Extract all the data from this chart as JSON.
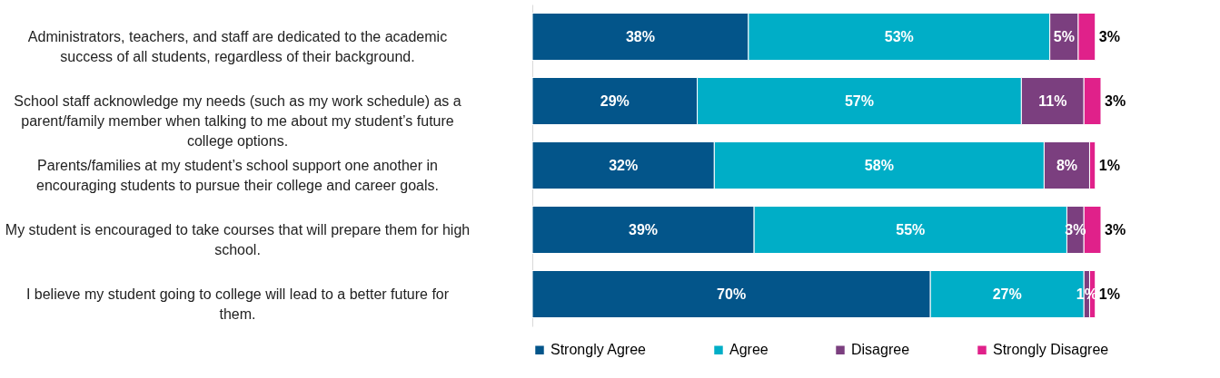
{
  "chart_data": {
    "type": "bar",
    "orientation": "horizontal",
    "stacked": true,
    "legend": "bottom",
    "grid": false,
    "categories": [
      "Administrators, teachers, and staff are dedicated to the academic success of all students, regardless of their background.",
      "School staff acknowledge my needs (such as my work schedule) as a parent/family member when talking to me about my student’s future college options.",
      "Parents/families at my student’s school support one another in encouraging students to pursue their college and career goals.",
      "My student is encouraged to take courses that will prepare them for high school.",
      "I believe my student going to college will lead to a better future for them."
    ],
    "series": [
      {
        "name": "Strongly Agree",
        "color": "#03558a",
        "values": [
          38,
          29,
          32,
          39,
          70
        ],
        "value_labels": [
          "38%",
          "29%",
          "32%",
          "39%",
          "70%"
        ]
      },
      {
        "name": "Agree",
        "color": "#00aec7",
        "values": [
          53,
          57,
          58,
          55,
          27
        ],
        "value_labels": [
          "53%",
          "57%",
          "58%",
          "55%",
          "27%"
        ]
      },
      {
        "name": "Disagree",
        "color": "#7b3f7f",
        "values": [
          5,
          11,
          8,
          3,
          1
        ],
        "value_labels": [
          "5%",
          "11%",
          "8%",
          "3%",
          "1%"
        ]
      },
      {
        "name": "Strongly Disagree",
        "color": "#e0218a",
        "values": [
          3,
          3,
          1,
          3,
          1
        ],
        "value_labels": [
          "3%",
          "3%",
          "1%",
          "3%",
          "1%"
        ]
      }
    ]
  }
}
